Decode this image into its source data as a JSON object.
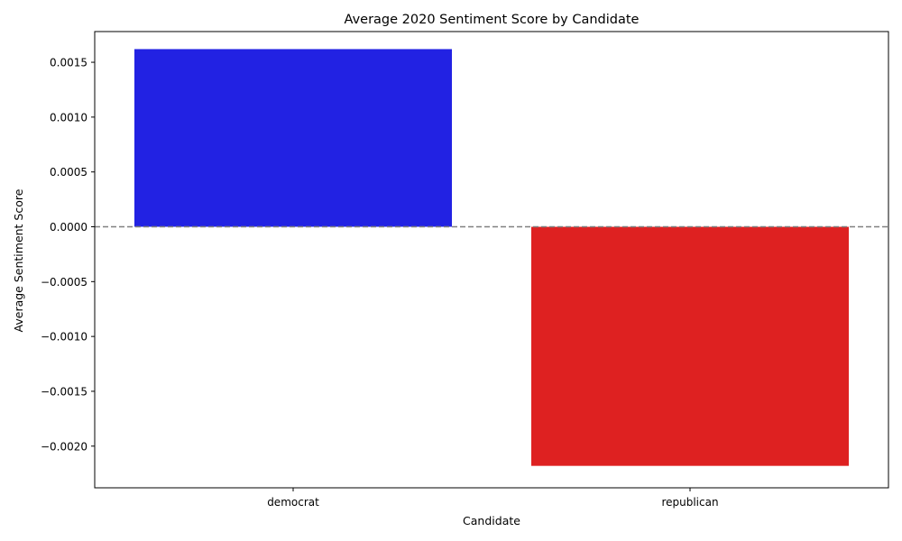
{
  "chart_data": {
    "type": "bar",
    "title": "Average 2020 Sentiment Score by Candidate",
    "xlabel": "Candidate",
    "ylabel": "Average Sentiment Score",
    "categories": [
      "democrat",
      "republican"
    ],
    "values": [
      0.00162,
      -0.00218
    ],
    "colors": [
      "#2222e3",
      "#de2121"
    ],
    "ylim": [
      -0.00238,
      0.00178
    ],
    "yticks": [
      0.0015,
      0.001,
      0.0005,
      0.0,
      -0.0005,
      -0.001,
      -0.0015,
      -0.002
    ],
    "ytick_labels": [
      "0.0015",
      "0.0010",
      "0.0005",
      "0.0000",
      "−0.0005",
      "−0.0010",
      "−0.0015",
      "−0.0020"
    ],
    "reference_line": {
      "y": 0,
      "style": "dashed",
      "color": "#808080"
    },
    "grid": false,
    "legend": "none"
  }
}
